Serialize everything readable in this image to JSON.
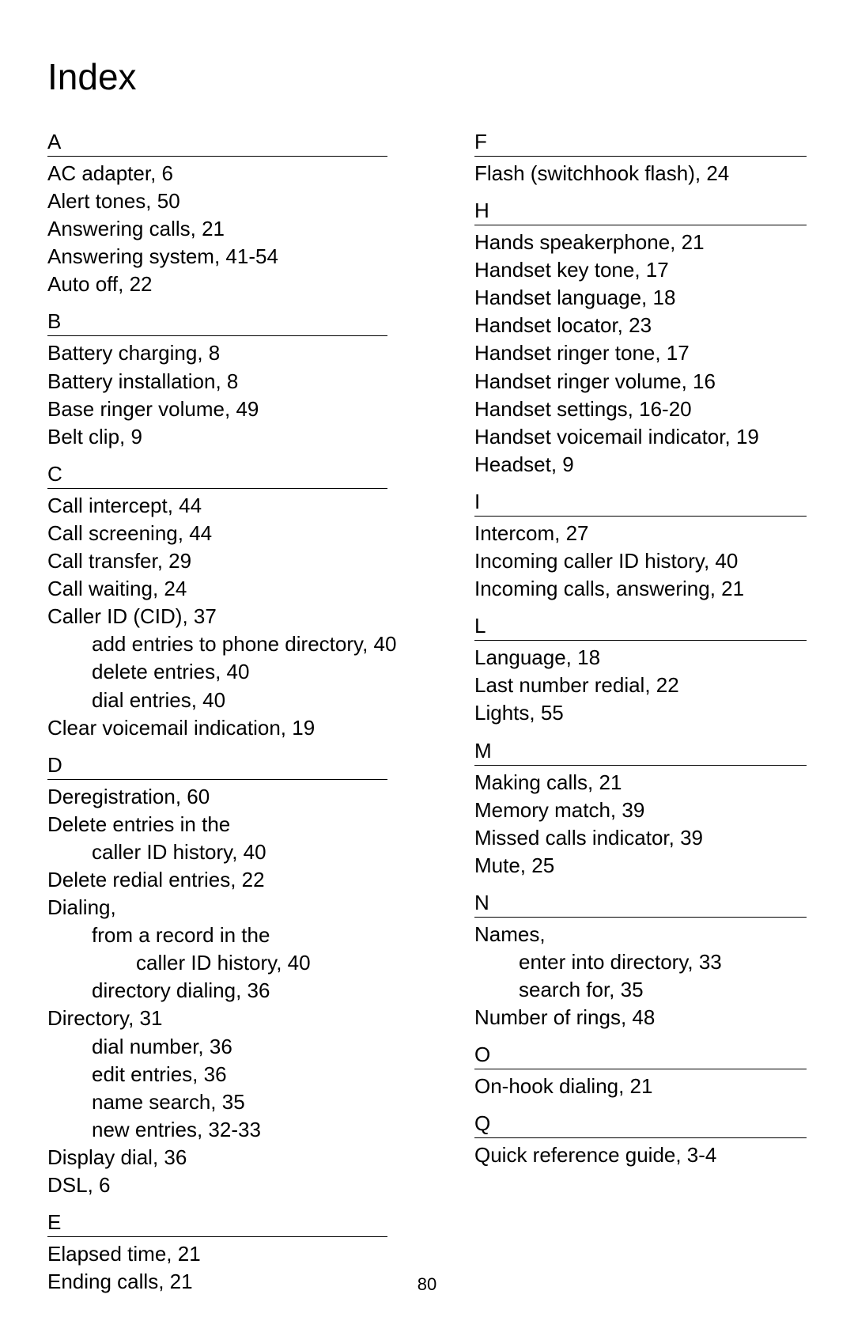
{
  "title": "Index",
  "page_number": "80",
  "columns": [
    {
      "sections": [
        {
          "letter": "A",
          "entries": [
            {
              "text": "AC adapter, 6",
              "indent": 0
            },
            {
              "text": "Alert tones, 50",
              "indent": 0
            },
            {
              "text": "Answering calls, 21",
              "indent": 0
            },
            {
              "text": "Answering system, 41-54",
              "indent": 0
            },
            {
              "text": "Auto off, 22",
              "indent": 0
            }
          ]
        },
        {
          "letter": "B",
          "entries": [
            {
              "text": "Battery charging, 8",
              "indent": 0
            },
            {
              "text": "Battery installation, 8",
              "indent": 0
            },
            {
              "text": "Base ringer volume, 49",
              "indent": 0
            },
            {
              "text": "Belt clip, 9",
              "indent": 0
            }
          ]
        },
        {
          "letter": "C",
          "entries": [
            {
              "text": "Call intercept, 44",
              "indent": 0
            },
            {
              "text": "Call screening, 44",
              "indent": 0
            },
            {
              "text": "Call transfer, 29",
              "indent": 0
            },
            {
              "text": "Call waiting, 24",
              "indent": 0
            },
            {
              "text": "Caller ID (CID), 37",
              "indent": 0
            },
            {
              "text": "add entries to phone directory, 40",
              "indent": 1
            },
            {
              "text": "delete entries, 40",
              "indent": 1
            },
            {
              "text": "dial entries, 40",
              "indent": 1
            },
            {
              "text": "Clear voicemail indication, 19",
              "indent": 0
            }
          ]
        },
        {
          "letter": "D",
          "entries": [
            {
              "text": "Deregistration, 60",
              "indent": 0
            },
            {
              "text": "Delete entries in the",
              "indent": 0
            },
            {
              "text": "caller ID history, 40",
              "indent": 1
            },
            {
              "text": "Delete redial entries, 22",
              "indent": 0
            },
            {
              "text": "Dialing,",
              "indent": 0
            },
            {
              "text": "from a record in the",
              "indent": 1
            },
            {
              "text": "caller ID history, 40",
              "indent": 2
            },
            {
              "text": "directory dialing, 36",
              "indent": 1
            },
            {
              "text": "Directory, 31",
              "indent": 0
            },
            {
              "text": "dial number, 36",
              "indent": 1
            },
            {
              "text": "edit entries, 36",
              "indent": 1
            },
            {
              "text": "name search, 35",
              "indent": 1
            },
            {
              "text": "new entries, 32-33",
              "indent": 1
            },
            {
              "text": "Display dial, 36",
              "indent": 0
            },
            {
              "text": "DSL, 6",
              "indent": 0
            }
          ]
        },
        {
          "letter": "E",
          "entries": [
            {
              "text": "Elapsed time, 21",
              "indent": 0
            },
            {
              "text": "Ending calls, 21",
              "indent": 0
            }
          ]
        }
      ]
    },
    {
      "sections": [
        {
          "letter": "F",
          "entries": [
            {
              "text": "Flash (switchhook flash), 24",
              "indent": 0
            }
          ]
        },
        {
          "letter": "H",
          "entries": [
            {
              "text": "Hands speakerphone, 21",
              "indent": 0
            },
            {
              "text": "Handset key tone, 17",
              "indent": 0
            },
            {
              "text": "Handset language, 18",
              "indent": 0
            },
            {
              "text": "Handset locator, 23",
              "indent": 0
            },
            {
              "text": "Handset ringer tone, 17",
              "indent": 0
            },
            {
              "text": "Handset ringer volume, 16",
              "indent": 0
            },
            {
              "text": "Handset settings, 16-20",
              "indent": 0
            },
            {
              "text": "Handset voicemail indicator, 19",
              "indent": 0
            },
            {
              "text": "Headset, 9",
              "indent": 0
            }
          ]
        },
        {
          "letter": "I",
          "entries": [
            {
              "text": "Intercom, 27",
              "indent": 0
            },
            {
              "text": "Incoming caller ID history, 40",
              "indent": 0
            },
            {
              "text": "Incoming calls, answering, 21",
              "indent": 0
            }
          ]
        },
        {
          "letter": "L",
          "entries": [
            {
              "text": "Language, 18",
              "indent": 0
            },
            {
              "text": "Last number redial, 22",
              "indent": 0
            },
            {
              "text": "Lights, 55",
              "indent": 0
            }
          ]
        },
        {
          "letter": "M",
          "entries": [
            {
              "text": "Making calls, 21",
              "indent": 0
            },
            {
              "text": "Memory match, 39",
              "indent": 0
            },
            {
              "text": "Missed calls indicator, 39",
              "indent": 0
            },
            {
              "text": "Mute, 25",
              "indent": 0
            }
          ]
        },
        {
          "letter": "N",
          "entries": [
            {
              "text": "Names,",
              "indent": 0
            },
            {
              "text": "enter into directory, 33",
              "indent": 1
            },
            {
              "text": "search for, 35",
              "indent": 1
            },
            {
              "text": "Number of rings, 48",
              "indent": 0
            }
          ]
        },
        {
          "letter": "O",
          "entries": [
            {
              "text": "On-hook dialing, 21",
              "indent": 0
            }
          ]
        },
        {
          "letter": "Q",
          "entries": [
            {
              "text": "Quick reference guide, 3-4",
              "indent": 0
            }
          ]
        }
      ]
    }
  ]
}
